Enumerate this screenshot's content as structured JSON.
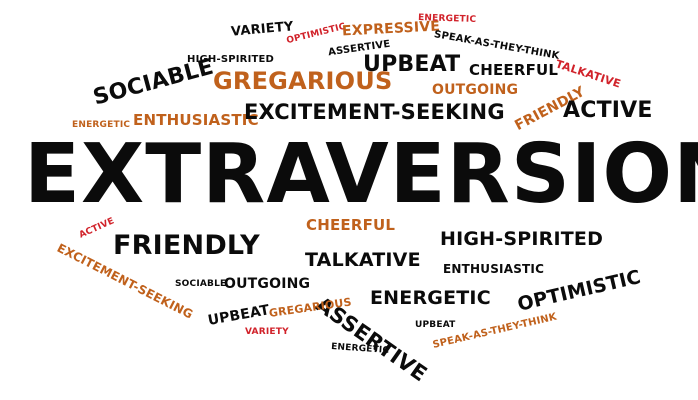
{
  "cloud": {
    "variety_1": "VARIETY",
    "optimistic_1": "OPTIMISTIC",
    "expressive": "EXPRESSIVE",
    "energetic_1": "ENERGETIC",
    "assertive_1": "ASSERTIVE",
    "speak_1": "SPEAK-AS-THEY-THINK",
    "talkative_1": "TALKATIVE",
    "high_spirited_1": "HIGH-SPIRITED",
    "upbeat_1": "UPBEAT",
    "cheerful_1": "CHEERFUL",
    "gregarious_1": "GREGARIOUS",
    "sociable_1": "SOCIABLE",
    "outgoing_1": "OUTGOING",
    "friendly_1": "FRIENDLY",
    "energetic_2": "ENERGETIC",
    "enthusiastic_1": "ENTHUSIASTIC",
    "excitement_seeking_1": "EXCITEMENT-SEEKING",
    "active_1": "ACTIVE",
    "main": "EXTRAVERSION",
    "active_2": "ACTIVE",
    "cheerful_2": "CHEERFUL",
    "excitement_seeking_2": "EXCITEMENT-SEEKING",
    "friendly_2": "FRIENDLY",
    "high_spirited_2": "HIGH-SPIRITED",
    "talkative_2": "TALKATIVE",
    "enthusiastic_2": "ENTHUSIASTIC",
    "sociable_2": "SOCIABLE",
    "outgoing_2": "OUTGOING",
    "optimistic_2": "OPTIMISTIC",
    "energetic_3": "ENERGETIC",
    "assertive_2": "ASSERTIVE",
    "upbeat_2": "UPBEAT",
    "gregarious_2": "GREGARIOUS",
    "upbeat_3": "UPBEAT",
    "speak_2": "SPEAK-AS-THEY-THINK",
    "variety_2": "VARIETY",
    "energetic_4": "ENERGETIC"
  },
  "colors": {
    "black": "#0b0b0b",
    "orange": "#c0611c",
    "red": "#d1222a"
  }
}
